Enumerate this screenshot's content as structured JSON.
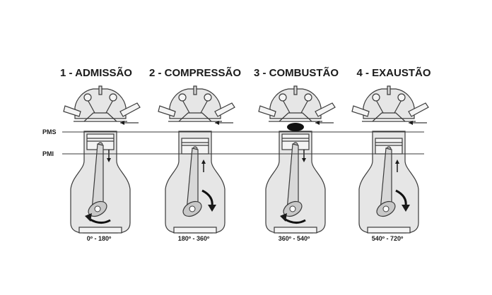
{
  "strokes": [
    {
      "title": "1 - ADMISSÃO",
      "range": "0º - 180º",
      "combustion": false,
      "piston_dir": "down",
      "rotation_arrow": "left"
    },
    {
      "title": "2 - COMPRESSÃO",
      "range": "180º - 360º",
      "combustion": false,
      "piston_dir": "up",
      "rotation_arrow": "right"
    },
    {
      "title": "3 - COMBUSTÃO",
      "range": "360º - 540º",
      "combustion": true,
      "piston_dir": "down",
      "rotation_arrow": "left"
    },
    {
      "title": "4 - EXAUSTÃO",
      "range": "540º - 720º",
      "combustion": false,
      "piston_dir": "up",
      "rotation_arrow": "right"
    }
  ],
  "reference_lines": {
    "pms": "PMS",
    "pmi": "PMI"
  }
}
